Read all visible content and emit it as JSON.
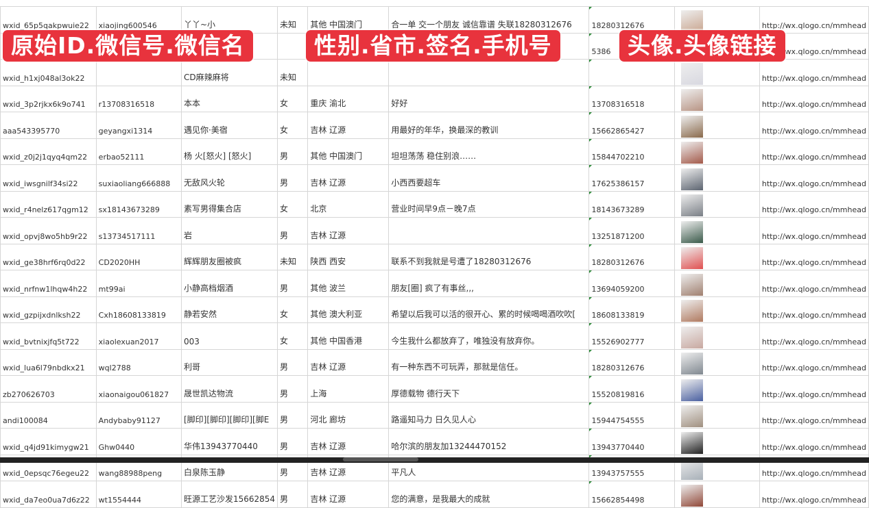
{
  "banners": [
    "原始ID.微信号.微信名",
    "性别.省市.签名.手机号",
    "头像.头像链接"
  ],
  "rows": [
    [
      "wxid_65p5qakpwuie22",
      "xiaojing600546",
      "丫丫~小",
      "未知",
      "其他 中国澳门",
      "合一单 交一个朋友 诚信靠谱 失联18280312676",
      "18280312676",
      "http://wx.qlogo.cn/mmhead"
    ],
    [
      "",
      "",
      "",
      "",
      "",
      "",
      "5386",
      "http://wx.qlogo.cn/mmhead"
    ],
    [
      "wxid_h1xj048al3ok22",
      "",
      "CD麻辣麻将",
      "未知",
      "",
      "",
      "",
      "http://wx.qlogo.cn/mmhead"
    ],
    [
      "wxid_3p2rjkx6k9o741",
      "r13708316518",
      "本本",
      "女",
      "重庆 渝北",
      "好好",
      "13708316518",
      "http://wx.qlogo.cn/mmhead"
    ],
    [
      "aaa543395770",
      "geyangxi1314",
      "遇见你·美宿",
      "女",
      "吉林 辽源",
      "用最好的年华，换最深的教训",
      "15662865427",
      "http://wx.qlogo.cn/mmhead"
    ],
    [
      "wxid_z0j2j1qyq4qm22",
      "erbao52111",
      "杨 火[怒火] [怒火]",
      "男",
      "其他 中国澳门",
      "坦坦荡荡 稳住别浪……",
      "15844702210",
      "http://wx.qlogo.cn/mmhead"
    ],
    [
      "wxid_iwsgnilf34si22",
      "suxiaoliang666888",
      "无敌风火轮",
      "男",
      "吉林 辽源",
      "小西西要超车",
      "17625386157",
      "http://wx.qlogo.cn/mmhead"
    ],
    [
      "wxid_r4nelz617qgm12",
      "sx18143673289",
      "素写男得集合店",
      "女",
      "北京",
      "营业时间早9点－晚7点",
      "18143673289",
      "http://wx.qlogo.cn/mmhead"
    ],
    [
      "wxid_opvj8wo5hb9r22",
      "s13734517111",
      "岩",
      "男",
      "吉林 辽源",
      "",
      "13251871200",
      "http://wx.qlogo.cn/mmhead"
    ],
    [
      "wxid_ge38hrf6rq0d22",
      "CD2020HH",
      "辉辉朋友圈被疯",
      "未知",
      "陕西 西安",
      "联系不到我就是号遭了18280312676",
      "18280312676",
      "http://wx.qlogo.cn/mmhead"
    ],
    [
      "wxid_nrfnw1lhqw4h22",
      "mt99ai",
      "小静高档烟酒",
      "男",
      "其他 波兰",
      "朋友[圈] 疯了有事丝,,,",
      "13694059200",
      "http://wx.qlogo.cn/mmhead"
    ],
    [
      "wxid_gzpijxdnlksh22",
      "Cxh18608133819",
      "静若安然",
      "女",
      "其他 澳大利亚",
      "希望以后我可以活的很开心、累的时候喝喝酒吹吹[",
      "18608133819",
      "http://wx.qlogo.cn/mmhead"
    ],
    [
      "wxid_bvtnixjfq5t722",
      "xiaolexuan2017",
      "003",
      "女",
      "其他 中国香港",
      "今生我什么都放弃了，唯独没有放弃你。",
      "15526902777",
      "http://wx.qlogo.cn/mmhead"
    ],
    [
      "wxid_lua6l79nbdkx21",
      "wql2788",
      "利哥",
      "男",
      "吉林 辽源",
      "有一种东西不可玩弄，那就是信任。",
      "18280312676",
      "http://wx.qlogo.cn/mmhead"
    ],
    [
      "zb270626703",
      "xiaonaigou061827",
      "晟世凯达物流",
      "男",
      "上海",
      "厚德载物 德行天下",
      "15520819816",
      "http://wx.qlogo.cn/mmhead"
    ],
    [
      "andi100084",
      "Andybaby91127",
      "[脚印][脚印][脚印][脚E",
      "男",
      "河北 廊坊",
      "路遥知马力 日久见人心",
      "15944754555",
      "http://wx.qlogo.cn/mmhead"
    ],
    [
      "wxid_q4jd91kimygw21",
      "Ghw0440",
      "华伟13943770440",
      "男",
      "吉林 辽源",
      "哈尔滨的朋友加13244470152",
      "13943770440",
      "http://wx.qlogo.cn/mmhead"
    ],
    [
      "wxid_0epsqc76egeu22",
      "wang88988peng",
      "白泉陈玉静",
      "男",
      "吉林 辽源",
      "平凡人",
      "13943757555",
      "http://wx.qlogo.cn/mmhead"
    ],
    [
      "wxid_da7eo0ua7d6z22",
      "wt1554444",
      "旺源工艺沙发15662854",
      "男",
      "吉林 辽源",
      "您的满意，是我最大的成就",
      "15662854498",
      "http://wx.qlogo.cn/mmhead"
    ]
  ],
  "avatar_colors": [
    "#c9a58f",
    "#6b7fa8",
    "#d8d8e0",
    "#b89484",
    "#8a6a4c",
    "#a35a4a",
    "#5c6470",
    "#7a7f86",
    "#3a5a4a",
    "#e05050",
    "#a08070",
    "#b07a60",
    "#c8a8a0",
    "#808890",
    "#4a60a0",
    "#a09080",
    "#202020",
    "#a8b0b8",
    "#904838"
  ],
  "colors": {
    "banner": "#e8333d",
    "grid": "#d6d6d6",
    "comment_marker": "#2e8b3a"
  }
}
